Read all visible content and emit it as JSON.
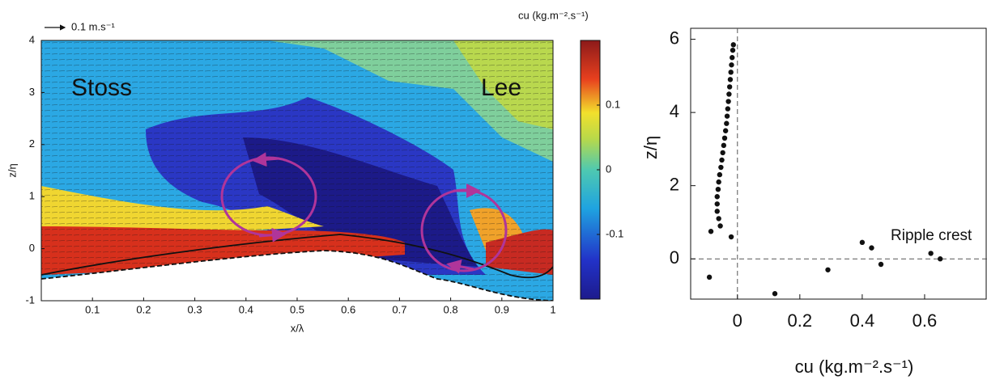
{
  "chart_data": [
    {
      "type": "heatmap",
      "colorbar_label": "cu (kg.m⁻².s⁻¹)",
      "scale_label": "0.1 m.s⁻¹",
      "xlabel": "x/λ",
      "ylabel": "z/η",
      "annotations": [
        "Stoss",
        "Lee"
      ],
      "xlim": [
        0,
        1
      ],
      "xticks": [
        0.1,
        0.2,
        0.3,
        0.4,
        0.5,
        0.6,
        0.7,
        0.8,
        0.9,
        1
      ],
      "ylim": [
        -1,
        4
      ],
      "yticks": [
        -1,
        0,
        1,
        2,
        3,
        4
      ],
      "clim": [
        -0.2,
        0.2
      ],
      "cticks": [
        0.1,
        0,
        -0.1
      ]
    },
    {
      "type": "scatter",
      "xlabel": "cu (kg.m⁻².s⁻¹)",
      "ylabel": "z/η",
      "annotation": "Ripple crest",
      "color": "#111111",
      "xlim": [
        -0.15,
        0.8
      ],
      "xticks": [
        0,
        0.2,
        0.4,
        0.6
      ],
      "ylim": [
        -1.1,
        6.3
      ],
      "yticks": [
        0,
        2,
        4,
        6
      ],
      "reference_x": 0,
      "reference_y": 0,
      "x": [
        -0.055,
        -0.06,
        -0.065,
        -0.065,
        -0.065,
        -0.062,
        -0.06,
        -0.057,
        -0.053,
        -0.05,
        -0.047,
        -0.044,
        -0.041,
        -0.038,
        -0.035,
        -0.033,
        -0.031,
        -0.029,
        -0.027,
        -0.025,
        -0.023,
        -0.021,
        -0.019,
        -0.017,
        -0.015,
        -0.013,
        -0.085,
        -0.02,
        -0.09,
        0.12,
        0.29,
        0.4,
        0.43,
        0.46,
        0.62,
        0.65
      ],
      "y": [
        0.9,
        1.1,
        1.3,
        1.5,
        1.7,
        1.9,
        2.1,
        2.3,
        2.5,
        2.7,
        2.9,
        3.1,
        3.3,
        3.5,
        3.7,
        3.9,
        4.1,
        4.3,
        4.5,
        4.7,
        4.9,
        5.1,
        5.3,
        5.5,
        5.7,
        5.85,
        0.75,
        0.6,
        -0.5,
        -0.95,
        -0.3,
        0.45,
        0.3,
        -0.15,
        0.15,
        0.0
      ]
    }
  ]
}
